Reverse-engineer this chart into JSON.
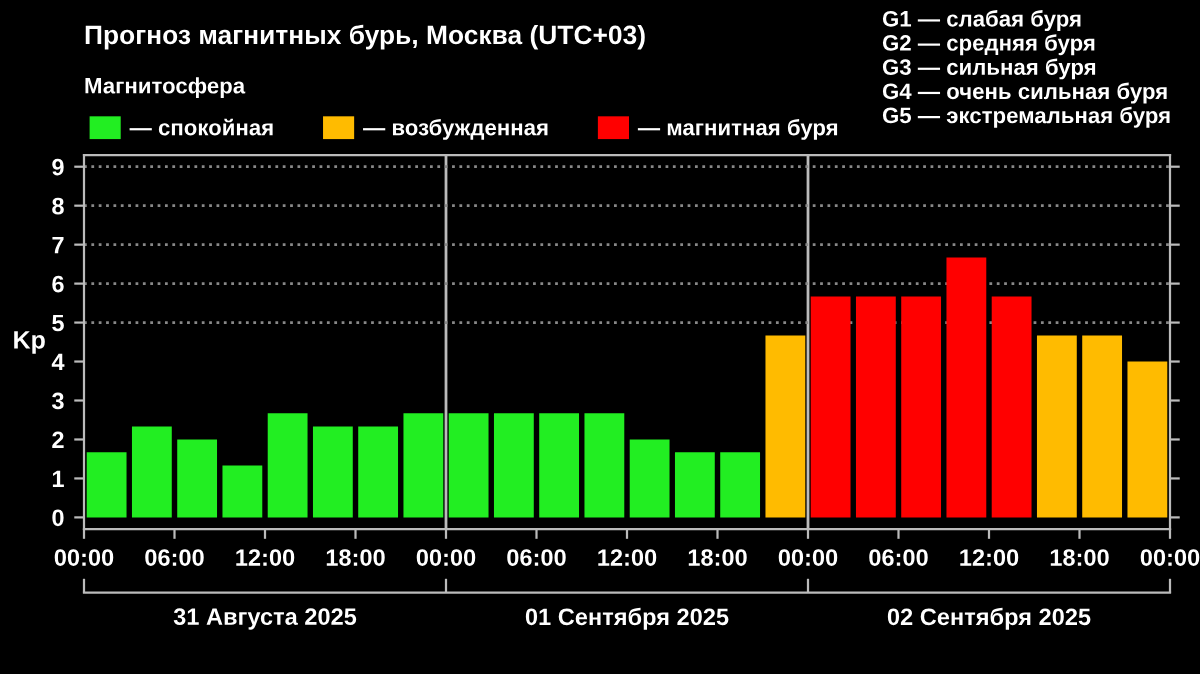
{
  "chart_data": {
    "type": "bar",
    "title": "Прогноз магнитных бурь, Москва (UTC+03)",
    "ylabel": "Kp",
    "legend_title": "Магнитосфера",
    "legend": "top",
    "x": [
      "2025-08-31T01:30",
      "2025-08-31T04:30",
      "2025-08-31T07:30",
      "2025-08-31T10:30",
      "2025-08-31T13:30",
      "2025-08-31T16:30",
      "2025-08-31T19:30",
      "2025-08-31T22:30",
      "2025-09-01T01:30",
      "2025-09-01T04:30",
      "2025-09-01T07:30",
      "2025-09-01T10:30",
      "2025-09-01T13:30",
      "2025-09-01T16:30",
      "2025-09-01T19:30",
      "2025-09-01T22:30",
      "2025-09-02T01:30",
      "2025-09-02T04:30",
      "2025-09-02T07:30",
      "2025-09-02T10:30",
      "2025-09-02T13:30",
      "2025-09-02T16:30",
      "2025-09-02T19:30",
      "2025-09-02T22:30"
    ],
    "series": [
      {
        "name": "— спокойная",
        "color": "#22ee22",
        "values": [
          1.67,
          2.33,
          2.0,
          1.33,
          2.67,
          2.33,
          2.33,
          2.67,
          2.67,
          2.67,
          2.67,
          2.67,
          2.0,
          1.67,
          1.67,
          null,
          null,
          null,
          null,
          null,
          null,
          null,
          null,
          null
        ]
      },
      {
        "name": "— возбужденная",
        "color": "#ffbb00",
        "values": [
          null,
          null,
          null,
          null,
          null,
          null,
          null,
          null,
          null,
          null,
          null,
          null,
          null,
          null,
          null,
          4.67,
          null,
          null,
          null,
          null,
          null,
          4.67,
          4.67,
          4.0
        ]
      },
      {
        "name": "— магнитная буря",
        "color": "#ff0000",
        "values": [
          null,
          null,
          null,
          null,
          null,
          null,
          null,
          null,
          null,
          null,
          null,
          null,
          null,
          null,
          null,
          null,
          5.67,
          5.67,
          5.67,
          6.67,
          5.67,
          null,
          null,
          null
        ]
      }
    ],
    "xlim": [
      "2025-08-31T00:00",
      "2025-09-03T00:00"
    ],
    "xticks": [
      {
        "value": "2025-08-31T00:00",
        "label": "00:00"
      },
      {
        "value": "2025-08-31T06:00",
        "label": "06:00"
      },
      {
        "value": "2025-08-31T12:00",
        "label": "12:00"
      },
      {
        "value": "2025-08-31T18:00",
        "label": "18:00"
      },
      {
        "value": "2025-09-01T00:00",
        "label": "00:00"
      },
      {
        "value": "2025-09-01T06:00",
        "label": "06:00"
      },
      {
        "value": "2025-09-01T12:00",
        "label": "12:00"
      },
      {
        "value": "2025-09-01T18:00",
        "label": "18:00"
      },
      {
        "value": "2025-09-02T00:00",
        "label": "00:00"
      },
      {
        "value": "2025-09-02T06:00",
        "label": "06:00"
      },
      {
        "value": "2025-09-02T12:00",
        "label": "12:00"
      },
      {
        "value": "2025-09-02T18:00",
        "label": "18:00"
      },
      {
        "value": "2025-09-03T00:00",
        "label": "00:00"
      }
    ],
    "ylim": [
      -0.3,
      9.3
    ],
    "yticks": [
      0,
      1,
      2,
      3,
      4,
      5,
      6,
      7,
      8,
      9
    ],
    "ref_lines": [
      {
        "axis": "x",
        "value": "2025-09-01T00:00",
        "label": null,
        "color": "#bbbbbb"
      },
      {
        "axis": "x",
        "value": "2025-09-02T00:00",
        "label": null,
        "color": "#bbbbbb"
      },
      {
        "axis": "y",
        "value": 5,
        "label": null,
        "color": "#888888",
        "line_style": "dotted"
      },
      {
        "axis": "y",
        "value": 6,
        "label": null,
        "color": "#888888",
        "line_style": "dotted"
      },
      {
        "axis": "y",
        "value": 7,
        "label": null,
        "color": "#888888",
        "line_style": "dotted"
      },
      {
        "axis": "y",
        "value": 8,
        "label": null,
        "color": "#888888",
        "line_style": "dotted"
      },
      {
        "axis": "y",
        "value": 9,
        "label": null,
        "color": "#888888",
        "line_style": "dotted"
      }
    ],
    "annotations": [
      "G1 — слабая буря\nG2 — средняя буря\nG3 — сильная буря\nG4 — очень сильная буря\nG5 — экстремальная буря",
      "31 Августа 2025",
      "01 Сентября 2025",
      "02 Сентября 2025"
    ]
  }
}
